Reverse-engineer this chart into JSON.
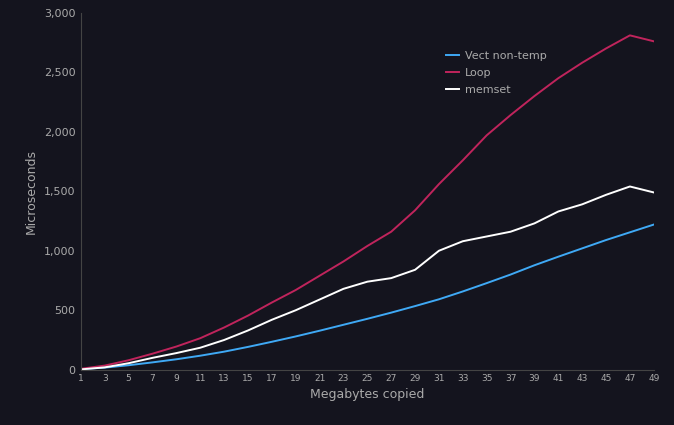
{
  "x": [
    1,
    3,
    5,
    7,
    9,
    11,
    13,
    15,
    17,
    19,
    21,
    23,
    25,
    27,
    29,
    31,
    33,
    35,
    37,
    39,
    41,
    43,
    45,
    47,
    49
  ],
  "vect_nontemp": [
    5,
    18,
    38,
    62,
    88,
    118,
    152,
    192,
    235,
    280,
    328,
    378,
    428,
    480,
    535,
    592,
    658,
    728,
    800,
    878,
    950,
    1020,
    1090,
    1155,
    1220
  ],
  "loop": [
    8,
    35,
    80,
    135,
    195,
    265,
    355,
    455,
    565,
    670,
    790,
    910,
    1040,
    1160,
    1340,
    1560,
    1760,
    1970,
    2140,
    2300,
    2450,
    2580,
    2700,
    2810,
    2760
  ],
  "memset": [
    3,
    20,
    55,
    100,
    140,
    185,
    250,
    330,
    420,
    500,
    590,
    680,
    740,
    770,
    840,
    1000,
    1080,
    1120,
    1160,
    1230,
    1330,
    1390,
    1470,
    1540,
    1490
  ],
  "vect_color": "#3fa9f5",
  "loop_color": "#c0245c",
  "memset_color": "#ffffff",
  "bg_color": "#14141e",
  "text_color": "#aaaaaa",
  "xlabel": "Megabytes copied",
  "ylabel": "Microseconds",
  "ylim": [
    0,
    3000
  ],
  "xlim": [
    1,
    49
  ],
  "yticks": [
    0,
    500,
    1000,
    1500,
    2000,
    2500,
    3000
  ],
  "xticks": [
    1,
    3,
    5,
    7,
    9,
    11,
    13,
    15,
    17,
    19,
    21,
    23,
    25,
    27,
    29,
    31,
    33,
    35,
    37,
    39,
    41,
    43,
    45,
    47,
    49
  ],
  "legend_labels": [
    "Vect non-temp",
    "Loop",
    "memset"
  ],
  "legend_order": [
    0,
    1,
    2
  ]
}
